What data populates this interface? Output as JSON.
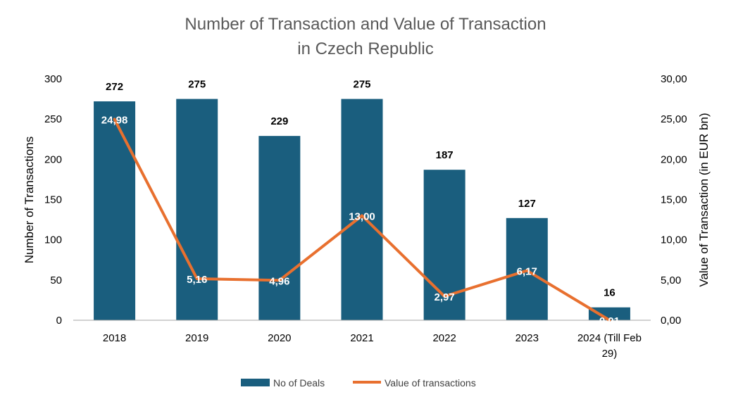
{
  "colors": {
    "bar": "#1a5e7e",
    "line": "#e8702f",
    "axis": "#a6a6a6"
  },
  "chart_data": {
    "type": "bar",
    "title": [
      "Number of Transaction and Value of Transaction",
      "in Czech Republic"
    ],
    "ylabel": "Number of Transactions",
    "y2label": "Value of Transaction (in EUR bn)",
    "ylim": [
      0,
      300
    ],
    "y2lim": [
      0,
      30
    ],
    "yticks": [
      "0",
      "50",
      "100",
      "150",
      "200",
      "250",
      "300"
    ],
    "y2ticks": [
      "0,00",
      "5,00",
      "10,00",
      "15,00",
      "20,00",
      "25,00",
      "30,00"
    ],
    "categories": [
      [
        "2018"
      ],
      [
        "2019"
      ],
      [
        "2020"
      ],
      [
        "2021"
      ],
      [
        "2022"
      ],
      [
        "2023"
      ],
      [
        "2024 (Till Feb",
        "29)"
      ]
    ],
    "series": [
      {
        "name": "No of Deals",
        "kind": "bar",
        "axis": "left",
        "values": [
          272,
          275,
          229,
          275,
          187,
          127,
          16
        ],
        "labels": [
          "272",
          "275",
          "229",
          "275",
          "187",
          "127",
          "16"
        ]
      },
      {
        "name": "Value of transactions",
        "kind": "line",
        "axis": "right",
        "values": [
          24.98,
          5.16,
          4.96,
          13.0,
          2.97,
          6.17,
          0.01
        ],
        "labels": [
          "24,98",
          "5,16",
          "4,96",
          "13,00",
          "2,97",
          "6,17",
          "0,01"
        ]
      }
    ],
    "legend_position": "bottom"
  }
}
